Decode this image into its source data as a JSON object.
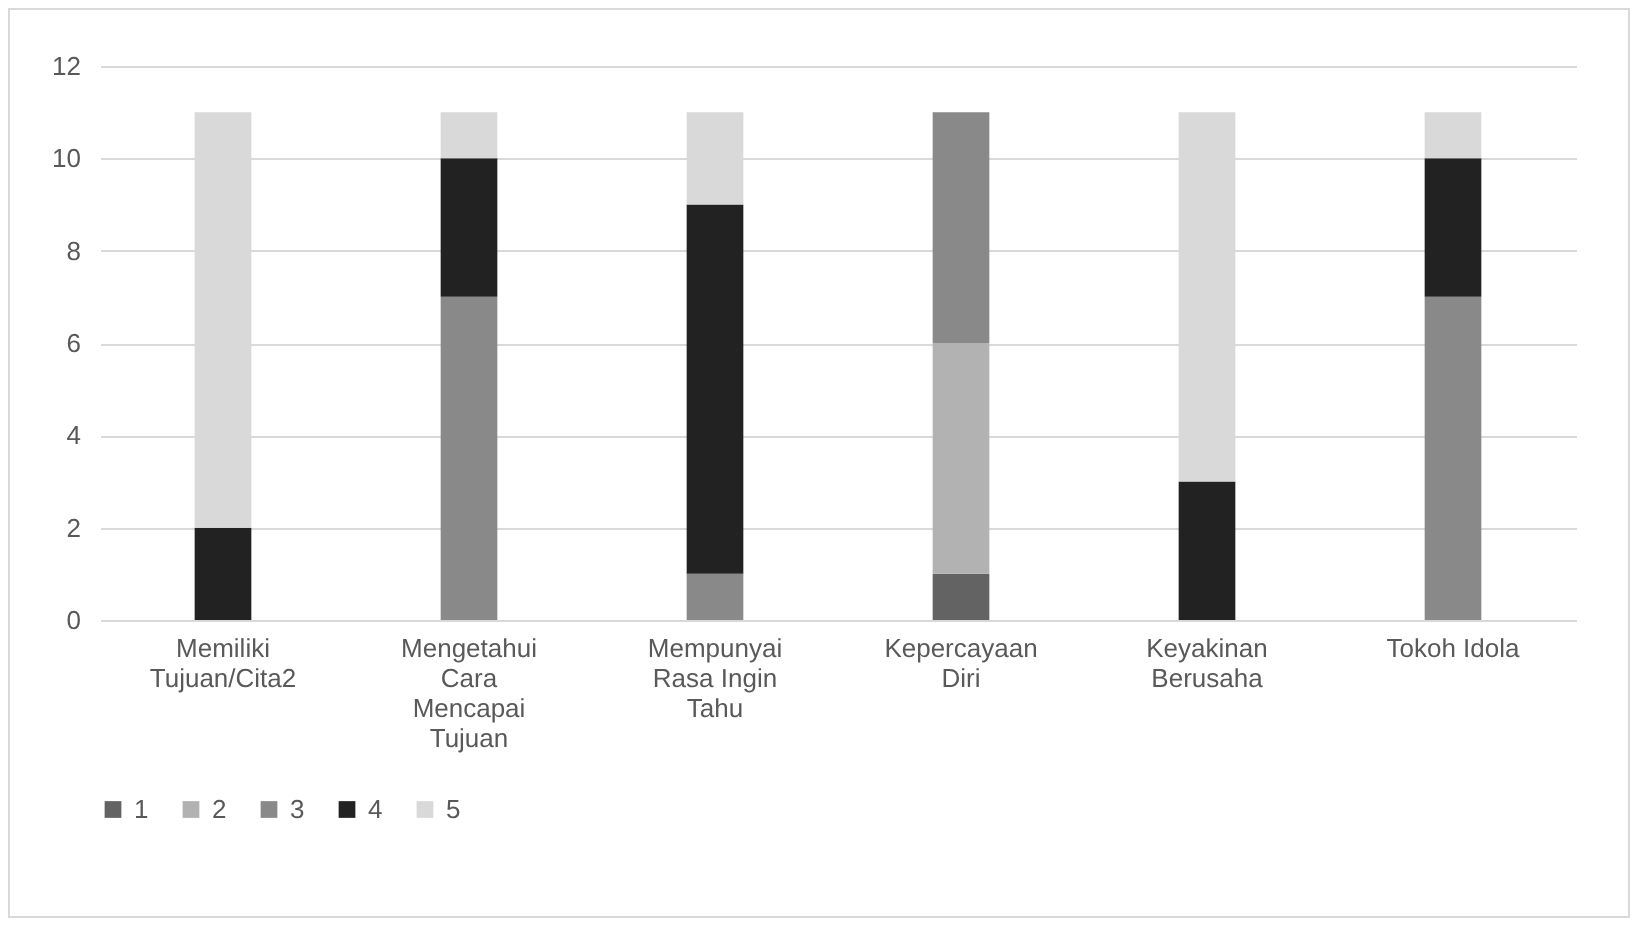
{
  "chart_data": {
    "type": "bar",
    "stacked": true,
    "categories": [
      "Memiliki Tujuan/Cita2",
      "Mengetahui Cara Mencapai Tujuan",
      "Mempunyai Rasa Ingin Tahu",
      "Kepercayaan Diri",
      "Keyakinan Berusaha",
      "Tokoh Idola"
    ],
    "series": [
      {
        "name": "1",
        "color": "#636363",
        "values": [
          0,
          0,
          0,
          1,
          0,
          0
        ]
      },
      {
        "name": "2",
        "color": "#b2b2b2",
        "values": [
          0,
          0,
          0,
          5,
          0,
          0
        ]
      },
      {
        "name": "3",
        "color": "#898989",
        "values": [
          0,
          7,
          1,
          5,
          0,
          7
        ]
      },
      {
        "name": "4",
        "color": "#222222",
        "values": [
          2,
          3,
          8,
          0,
          3,
          3
        ]
      },
      {
        "name": "5",
        "color": "#d9d9d9",
        "values": [
          9,
          1,
          2,
          0,
          8,
          1
        ]
      }
    ],
    "ylim": [
      0,
      12
    ],
    "yticks": [
      0,
      2,
      4,
      6,
      8,
      10,
      12
    ],
    "grid": "y",
    "legend": "bottom"
  }
}
